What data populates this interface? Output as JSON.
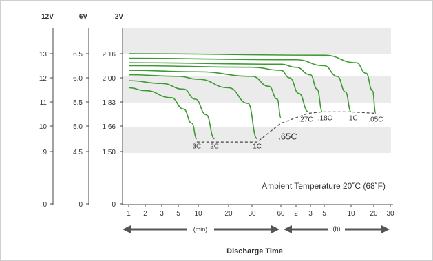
{
  "chart_data": {
    "type": "line",
    "axis_headers": {
      "v12": "12V",
      "v6": "6V",
      "v2": "2V"
    },
    "y_ticks": {
      "v12": [
        "13",
        "12",
        "11",
        "10",
        "9",
        "0"
      ],
      "v6": [
        "6.5",
        "6.0",
        "5.5",
        "5.0",
        "4.5",
        "0"
      ],
      "v2": [
        "2.16",
        "2.00",
        "1.83",
        "1.66",
        "1.50",
        "0"
      ]
    },
    "ylim_2v": [
      1.33,
      2.33
    ],
    "x_ticks_min": [
      "1",
      "2",
      "3",
      "5",
      "10",
      "20",
      "30",
      "60"
    ],
    "x_ticks_h": [
      "2",
      "3",
      "5",
      "10",
      "20",
      "30"
    ],
    "unit_min": "(min)",
    "unit_h": "(h)",
    "xlabel": "Discharge Time",
    "annotation": "Ambient Temperature 20˚C (68˚F)",
    "colors": {
      "curve": "#3d9a32",
      "band": "#ebebeb",
      "axis": "#444444",
      "arrow": "#555555"
    },
    "series": [
      {
        "name": "3C",
        "points": [
          [
            1,
            1.93
          ],
          [
            2,
            1.91
          ],
          [
            4,
            1.86
          ],
          [
            6,
            1.78
          ],
          [
            8,
            1.68
          ],
          [
            9.5,
            1.58
          ]
        ]
      },
      {
        "name": "2C",
        "points": [
          [
            1,
            1.98
          ],
          [
            3,
            1.96
          ],
          [
            6,
            1.92
          ],
          [
            9,
            1.85
          ],
          [
            12,
            1.74
          ],
          [
            14.5,
            1.58
          ]
        ]
      },
      {
        "name": "1C",
        "points": [
          [
            1,
            2.02
          ],
          [
            5,
            2.01
          ],
          [
            10,
            1.99
          ],
          [
            20,
            1.93
          ],
          [
            28,
            1.82
          ],
          [
            34,
            1.58
          ]
        ]
      },
      {
        "name": ".65C",
        "points": [
          [
            1,
            2.05
          ],
          [
            10,
            2.04
          ],
          [
            30,
            2.01
          ],
          [
            45,
            1.94
          ],
          [
            55,
            1.85
          ],
          [
            60,
            1.72
          ]
        ]
      },
      {
        "name": ".27C",
        "points": [
          [
            1,
            2.08
          ],
          [
            30,
            2.07
          ],
          [
            60,
            2.05
          ],
          [
            90,
            2.0
          ],
          [
            130,
            1.89
          ],
          [
            170,
            1.76
          ]
        ]
      },
      {
        "name": ".18C",
        "points": [
          [
            1,
            2.1
          ],
          [
            60,
            2.09
          ],
          [
            120,
            2.07
          ],
          [
            180,
            2.02
          ],
          [
            230,
            1.92
          ],
          [
            280,
            1.76
          ]
        ]
      },
      {
        "name": ".1C",
        "points": [
          [
            1,
            2.13
          ],
          [
            120,
            2.12
          ],
          [
            300,
            2.08
          ],
          [
            420,
            2.01
          ],
          [
            520,
            1.9
          ],
          [
            600,
            1.76
          ]
        ]
      },
      {
        "name": ".05C",
        "points": [
          [
            1,
            2.16
          ],
          [
            300,
            2.15
          ],
          [
            700,
            2.1
          ],
          [
            950,
            2.03
          ],
          [
            1150,
            1.91
          ],
          [
            1260,
            1.75
          ]
        ]
      }
    ],
    "cutoff_line": [
      [
        9.5,
        1.56
      ],
      [
        14.5,
        1.56
      ],
      [
        34,
        1.56
      ],
      [
        60,
        1.68
      ],
      [
        170,
        1.75
      ],
      [
        280,
        1.76
      ],
      [
        600,
        1.76
      ],
      [
        1260,
        1.75
      ]
    ]
  }
}
